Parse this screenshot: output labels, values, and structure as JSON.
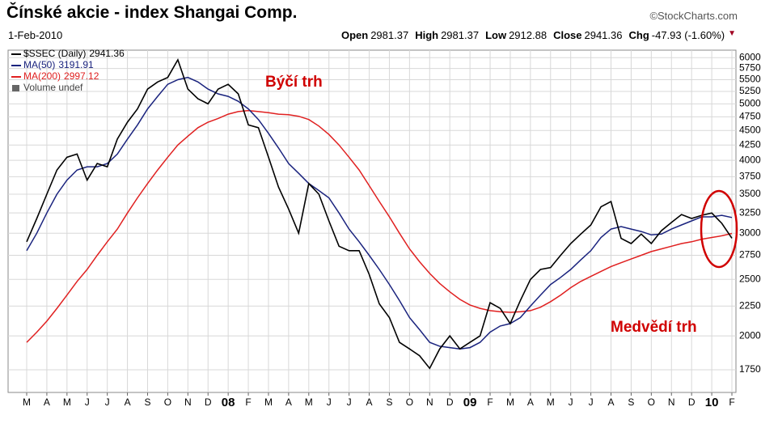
{
  "chart_data": {
    "type": "line",
    "title": "Čínské akcie - index Shangai Comp.",
    "source": "©StockCharts.com",
    "date": "1-Feb-2010",
    "stats": [
      {
        "label": "Open",
        "value": 2981.37
      },
      {
        "label": "High",
        "value": 2981.37
      },
      {
        "label": "Low",
        "value": 2912.88
      },
      {
        "label": "Close",
        "value": 2941.36
      },
      {
        "label": "Chg",
        "value": "-47.93 (-1.60%)"
      }
    ],
    "categories": [
      "M",
      null,
      "A",
      null,
      "M",
      null,
      "J",
      null,
      "J",
      null,
      "A",
      null,
      "S",
      null,
      "O",
      null,
      "N",
      null,
      "D",
      null,
      "08",
      null,
      "F",
      null,
      "M",
      null,
      "A",
      null,
      "M",
      null,
      "J",
      null,
      "J",
      null,
      "A",
      null,
      "S",
      null,
      "O",
      null,
      "N",
      null,
      "D",
      null,
      "09",
      null,
      "F",
      null,
      "M",
      null,
      "A",
      null,
      "M",
      null,
      "J",
      null,
      "J",
      null,
      "A",
      null,
      "S",
      null,
      "O",
      null,
      "N",
      null,
      "D",
      null,
      "10",
      null,
      "F"
    ],
    "series": [
      {
        "name": "$SSEC (Daily)",
        "color": "#000000",
        "values": [
          2900,
          3180,
          3500,
          3850,
          4050,
          4100,
          3700,
          3950,
          3900,
          4350,
          4650,
          4900,
          5300,
          5450,
          5550,
          5950,
          5300,
          5100,
          5000,
          5300,
          5400,
          5200,
          4600,
          4550,
          4050,
          3600,
          3300,
          3000,
          3650,
          3500,
          3150,
          2850,
          2800,
          2800,
          2550,
          2270,
          2150,
          1950,
          1900,
          1850,
          1760,
          1900,
          2000,
          1900,
          1950,
          2000,
          2280,
          2230,
          2100,
          2300,
          2500,
          2600,
          2620,
          2750,
          2880,
          2990,
          3100,
          3330,
          3400,
          2940,
          2880,
          2990,
          2880,
          3030,
          3130,
          3230,
          3180,
          3220,
          3250,
          3120,
          2941.36
        ]
      },
      {
        "name": "MA(50)",
        "color": "#1a237e",
        "values": [
          2800,
          3000,
          3250,
          3500,
          3700,
          3850,
          3900,
          3900,
          3950,
          4100,
          4350,
          4600,
          4900,
          5150,
          5400,
          5500,
          5550,
          5450,
          5300,
          5200,
          5150,
          5050,
          4900,
          4700,
          4450,
          4200,
          3950,
          3800,
          3650,
          3550,
          3450,
          3250,
          3050,
          2900,
          2750,
          2600,
          2450,
          2300,
          2150,
          2050,
          1950,
          1920,
          1910,
          1900,
          1910,
          1950,
          2030,
          2080,
          2100,
          2150,
          2250,
          2350,
          2450,
          2520,
          2600,
          2700,
          2800,
          2950,
          3050,
          3080,
          3050,
          3020,
          2980,
          2990,
          3050,
          3100,
          3150,
          3200,
          3200,
          3220,
          3191.91
        ]
      },
      {
        "name": "MA(200)",
        "color": "#e02020",
        "values": [
          1950,
          2030,
          2120,
          2230,
          2350,
          2480,
          2600,
          2750,
          2900,
          3050,
          3250,
          3450,
          3650,
          3850,
          4050,
          4250,
          4400,
          4550,
          4650,
          4720,
          4800,
          4850,
          4870,
          4850,
          4830,
          4800,
          4790,
          4760,
          4700,
          4580,
          4430,
          4250,
          4050,
          3850,
          3620,
          3400,
          3200,
          3000,
          2820,
          2680,
          2560,
          2460,
          2380,
          2310,
          2260,
          2230,
          2210,
          2200,
          2195,
          2200,
          2210,
          2240,
          2290,
          2350,
          2420,
          2480,
          2530,
          2580,
          2630,
          2670,
          2710,
          2750,
          2790,
          2820,
          2850,
          2880,
          2900,
          2930,
          2950,
          2970,
          2997.12
        ]
      }
    ],
    "legend_extra": "Volume undef",
    "annotations": [
      {
        "text": "Býčí trh",
        "color": "#d00000"
      },
      {
        "text": "Medvědí trh",
        "color": "#d00000"
      }
    ],
    "ylim": [
      1600,
      6180
    ],
    "yticks": [
      1750,
      2000,
      2250,
      2500,
      2750,
      3000,
      3250,
      3500,
      3750,
      4000,
      4250,
      4500,
      4750,
      5000,
      5250,
      5500,
      5750,
      6000
    ],
    "log_scale": true,
    "grid": true
  }
}
